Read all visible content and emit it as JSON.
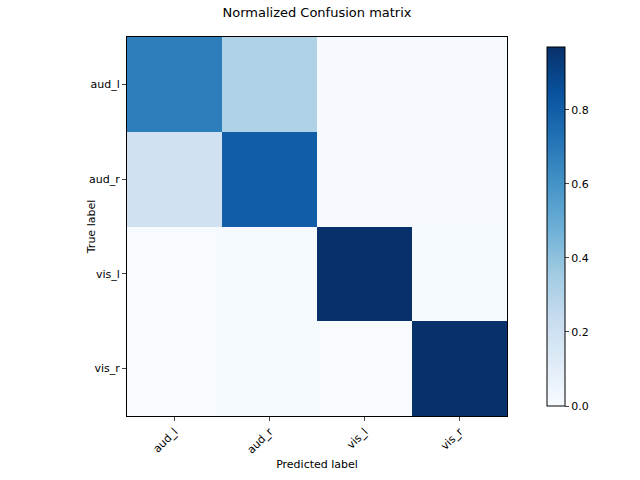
{
  "chart_data": {
    "type": "heatmap",
    "title": "Normalized Confusion matrix",
    "x_label": "Predicted label",
    "y_label": "True label",
    "x": [
      "aud_l",
      "aud_r",
      "vis_l",
      "vis_r"
    ],
    "y": [
      "aud_l",
      "aud_r",
      "vis_l",
      "vis_r"
    ],
    "cells": [
      [
        0.68,
        0.31,
        0.005,
        0.005
      ],
      [
        0.19,
        0.8,
        0.005,
        0.005
      ],
      [
        0.0,
        0.01,
        0.97,
        0.01
      ],
      [
        0.0,
        0.01,
        0.0,
        0.97
      ]
    ],
    "colorbar": {
      "range": [
        0,
        0.97
      ],
      "ticks": [
        {
          "value": 0,
          "label": "0.0"
        },
        {
          "value": 0.2,
          "label": "0.2"
        },
        {
          "value": 0.4,
          "label": "0.4"
        },
        {
          "value": 0.6,
          "label": "0.6"
        },
        {
          "value": 0.8,
          "label": "0.8"
        }
      ]
    }
  }
}
